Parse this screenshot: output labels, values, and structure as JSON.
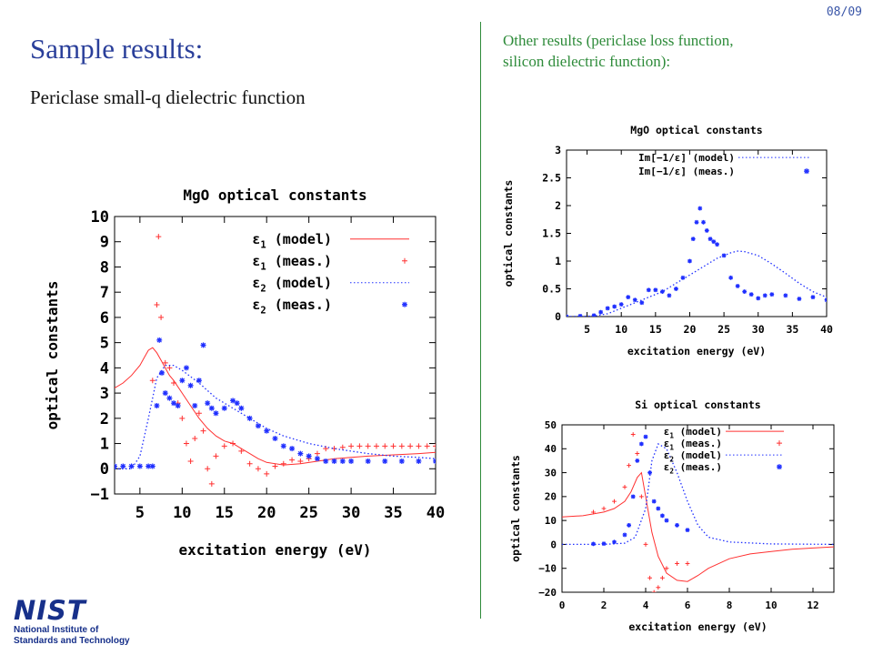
{
  "slide": {
    "page_number": "08/09",
    "title": "Sample results:",
    "subtitle": "Periclase small-q dielectric function",
    "right_heading_line1": "Other results (periclase loss function,",
    "right_heading_line2": "silicon dielectric function):"
  },
  "logo": {
    "word": "NIST",
    "line1": "National Institute of",
    "line2": "Standards and Technology"
  },
  "colors": {
    "title": "#2a3f9a",
    "heading_green": "#2e8b3a",
    "red": "#ff3030",
    "blue": "#1f2fff"
  },
  "chart_data": [
    {
      "type": "line",
      "title": "MgO optical constants",
      "xlabel": "excitation energy (eV)",
      "ylabel": "optical constants",
      "xlim": [
        2,
        40
      ],
      "ylim": [
        -1,
        10
      ],
      "xticks": [
        5,
        10,
        15,
        20,
        25,
        30,
        35,
        40
      ],
      "yticks": [
        -1,
        0,
        1,
        2,
        3,
        4,
        5,
        6,
        7,
        8,
        9,
        10
      ],
      "legend": "top-right",
      "series": [
        {
          "name_main": "ε",
          "name_sub": "1",
          "name_rest": " (model)",
          "style": "line",
          "color": "#ff3030",
          "x": [
            2,
            3,
            4,
            5,
            5.5,
            6,
            6.5,
            7,
            7.5,
            8,
            8.5,
            9,
            10,
            11,
            12,
            13,
            14,
            15,
            16,
            17,
            18,
            19,
            20,
            22,
            24,
            26,
            28,
            30,
            32,
            35,
            38,
            40
          ],
          "y": [
            3.2,
            3.4,
            3.7,
            4.1,
            4.4,
            4.7,
            4.8,
            4.6,
            4.3,
            4.0,
            3.7,
            3.5,
            3.0,
            2.5,
            2.0,
            1.6,
            1.3,
            1.1,
            1.0,
            0.8,
            0.6,
            0.4,
            0.25,
            0.15,
            0.2,
            0.3,
            0.4,
            0.45,
            0.5,
            0.55,
            0.6,
            0.65
          ]
        },
        {
          "name_main": "ε",
          "name_sub": "1",
          "name_rest": " (meas.)",
          "style": "plus",
          "color": "#ff3030",
          "x": [
            6.5,
            7,
            7.2,
            7.5,
            8,
            8.5,
            9,
            9.5,
            10,
            10.5,
            11,
            11.5,
            12,
            12.5,
            13,
            13.5,
            14,
            15,
            16,
            17,
            18,
            19,
            20,
            21,
            22,
            23,
            24,
            25,
            26,
            27,
            28,
            29,
            30,
            31,
            32,
            33,
            34,
            35,
            36,
            37,
            38,
            39,
            40
          ],
          "y": [
            3.5,
            6.5,
            9.2,
            6,
            4.2,
            4.0,
            3.4,
            2.6,
            2.0,
            1.0,
            0.3,
            1.2,
            2.2,
            1.5,
            0.0,
            -0.6,
            0.5,
            0.9,
            1.0,
            0.7,
            0.2,
            0.0,
            -0.2,
            0.1,
            0.2,
            0.35,
            0.3,
            0.4,
            0.6,
            0.8,
            0.8,
            0.85,
            0.9,
            0.9,
            0.9,
            0.9,
            0.9,
            0.9,
            0.9,
            0.9,
            0.9,
            0.9,
            0.9
          ]
        },
        {
          "name_main": "ε",
          "name_sub": "2",
          "name_rest": " (model)",
          "style": "dotted",
          "color": "#1f2fff",
          "x": [
            2,
            4,
            5,
            6,
            7,
            8,
            9,
            10,
            12,
            14,
            16,
            18,
            20,
            22,
            25,
            28,
            30,
            32,
            35,
            38,
            40
          ],
          "y": [
            0,
            0,
            0.5,
            2.0,
            3.6,
            4.1,
            4.1,
            3.9,
            3.4,
            2.8,
            2.4,
            2.0,
            1.6,
            1.3,
            1.0,
            0.8,
            0.7,
            0.6,
            0.5,
            0.45,
            0.4
          ]
        },
        {
          "name_main": "ε",
          "name_sub": "2",
          "name_rest": " (meas.)",
          "style": "star",
          "color": "#1f2fff",
          "x": [
            2,
            3,
            4,
            5,
            6,
            6.5,
            7,
            7.3,
            7.6,
            8,
            8.5,
            9,
            9.5,
            10,
            10.5,
            11,
            11.5,
            12,
            12.5,
            13,
            13.5,
            14,
            15,
            16,
            16.5,
            17,
            18,
            19,
            20,
            21,
            22,
            23,
            24,
            25,
            26,
            27,
            28,
            29,
            30,
            32,
            34,
            36,
            38,
            40
          ],
          "y": [
            0.1,
            0.1,
            0.1,
            0.1,
            0.1,
            0.1,
            2.5,
            5.1,
            3.8,
            3.0,
            2.8,
            2.6,
            2.5,
            3.5,
            4.0,
            3.3,
            2.5,
            3.5,
            4.9,
            2.6,
            2.4,
            2.2,
            2.4,
            2.7,
            2.6,
            2.4,
            2.0,
            1.7,
            1.5,
            1.2,
            0.9,
            0.8,
            0.6,
            0.5,
            0.4,
            0.3,
            0.3,
            0.3,
            0.3,
            0.3,
            0.3,
            0.3,
            0.3,
            0.3
          ]
        }
      ]
    },
    {
      "type": "line",
      "title": "MgO optical constants",
      "xlabel": "excitation energy (eV)",
      "ylabel": "optical constants",
      "xlim": [
        2,
        40
      ],
      "ylim": [
        0,
        3
      ],
      "xticks": [
        5,
        10,
        15,
        20,
        25,
        30,
        35,
        40
      ],
      "yticks": [
        0,
        0.5,
        1,
        1.5,
        2,
        2.5,
        3
      ],
      "legend": "top-right",
      "series": [
        {
          "name_main": "Im[−1/ε]",
          "name_sub": "",
          "name_rest": " (model)",
          "style": "dotted",
          "color": "#1f2fff",
          "x": [
            2,
            6,
            8,
            10,
            12,
            14,
            16,
            18,
            20,
            22,
            24,
            26,
            27,
            28,
            30,
            32,
            34,
            36,
            38,
            40
          ],
          "y": [
            0,
            0.01,
            0.05,
            0.15,
            0.25,
            0.35,
            0.45,
            0.6,
            0.75,
            0.9,
            1.05,
            1.15,
            1.18,
            1.17,
            1.1,
            0.95,
            0.78,
            0.6,
            0.45,
            0.35
          ]
        },
        {
          "name_main": "Im[−1/ε]",
          "name_sub": "",
          "name_rest": " (meas.)",
          "style": "star",
          "color": "#1f2fff",
          "x": [
            2,
            4,
            6,
            7,
            8,
            9,
            10,
            11,
            12,
            13,
            14,
            15,
            16,
            17,
            18,
            19,
            20,
            20.5,
            21,
            21.5,
            22,
            22.5,
            23,
            23.5,
            24,
            25,
            26,
            27,
            28,
            29,
            30,
            31,
            32,
            34,
            36,
            38,
            40
          ],
          "y": [
            0,
            0.01,
            0.02,
            0.08,
            0.15,
            0.18,
            0.22,
            0.35,
            0.3,
            0.25,
            0.48,
            0.48,
            0.45,
            0.38,
            0.5,
            0.7,
            1.0,
            1.4,
            1.7,
            1.95,
            1.7,
            1.55,
            1.4,
            1.35,
            1.3,
            1.1,
            0.7,
            0.55,
            0.45,
            0.4,
            0.33,
            0.38,
            0.4,
            0.38,
            0.32,
            0.35,
            0.3
          ]
        }
      ]
    },
    {
      "type": "line",
      "title": "Si optical constants",
      "xlabel": "excitation energy (eV)",
      "ylabel": "optical constants",
      "xlim": [
        0,
        13
      ],
      "ylim": [
        -20,
        50
      ],
      "xticks": [
        0,
        2,
        4,
        6,
        8,
        10,
        12
      ],
      "yticks": [
        -20,
        -10,
        0,
        10,
        20,
        30,
        40,
        50
      ],
      "legend": "top-right",
      "series": [
        {
          "name_main": "ε",
          "name_sub": "1",
          "name_rest": " (model)",
          "style": "line",
          "color": "#ff3030",
          "x": [
            0,
            1,
            2,
            2.5,
            3,
            3.3,
            3.6,
            3.8,
            4,
            4.3,
            4.6,
            5,
            5.5,
            6,
            6.5,
            7,
            8,
            9,
            10,
            11,
            12,
            13
          ],
          "y": [
            11.5,
            12,
            13.5,
            15,
            18,
            22,
            28,
            30,
            20,
            5,
            -5,
            -12,
            -15,
            -15.5,
            -13,
            -10,
            -6,
            -4,
            -3,
            -2,
            -1.5,
            -1
          ]
        },
        {
          "name_main": "ε",
          "name_sub": "1",
          "name_rest": " (meas.)",
          "style": "plus",
          "color": "#ff3030",
          "x": [
            1.5,
            2,
            2.5,
            3,
            3.2,
            3.4,
            3.6,
            3.8,
            4,
            4.2,
            4.4,
            4.6,
            4.8,
            5,
            5.5,
            6
          ],
          "y": [
            13.5,
            15,
            18,
            24,
            33,
            46,
            38,
            20,
            0,
            -14,
            -20,
            -18,
            -14,
            -10,
            -8,
            -8
          ]
        },
        {
          "name_main": "ε",
          "name_sub": "2",
          "name_rest": " (model)",
          "style": "dotted",
          "color": "#1f2fff",
          "x": [
            0,
            2,
            3,
            3.5,
            4,
            4.3,
            4.6,
            5,
            5.5,
            6,
            6.5,
            7,
            8,
            10,
            13
          ],
          "y": [
            0,
            0,
            0.5,
            3,
            15,
            35,
            42,
            40,
            30,
            18,
            8,
            3,
            1,
            0.2,
            0
          ]
        },
        {
          "name_main": "ε",
          "name_sub": "2",
          "name_rest": " (meas.)",
          "style": "star",
          "color": "#1f2fff",
          "x": [
            1.5,
            2,
            2.5,
            3,
            3.2,
            3.4,
            3.6,
            3.8,
            4,
            4.2,
            4.4,
            4.6,
            4.8,
            5,
            5.5,
            6
          ],
          "y": [
            0.2,
            0.3,
            1,
            4,
            8,
            20,
            35,
            42,
            45,
            30,
            18,
            15,
            12,
            10,
            8,
            6
          ]
        }
      ]
    }
  ]
}
